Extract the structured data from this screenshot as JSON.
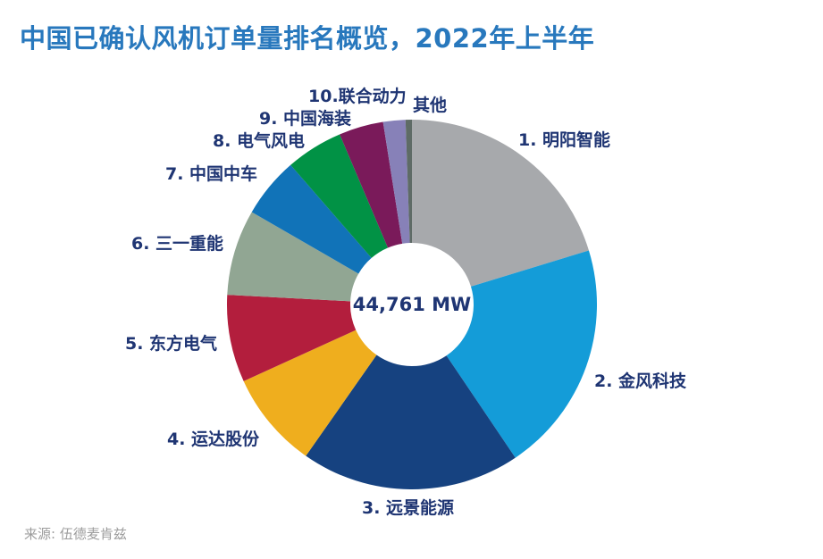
{
  "title": "中国已确认风机订单量排名概览，2022年上半年",
  "source_note": "来源: 伍德麦肯兹",
  "center_label": "44,761 MW",
  "colors": {
    "title_text": "#2878BD",
    "label_text": "#1F3573",
    "source_text": "#9C9C9C",
    "background": "#FFFFFF"
  },
  "chart_data": {
    "type": "pie",
    "style": "donut",
    "title": "中国已确认风机订单量排名概览，2022年上半年",
    "center_label": "44,761 MW",
    "total_mw": 44761,
    "units": "MW",
    "legend_position": "labels-around-slices",
    "slices": [
      {
        "rank": 1,
        "label": "1. 明阳智能",
        "name": "明阳智能",
        "color": "#A7A9AC",
        "start_deg": 0,
        "end_deg": 73,
        "share_pct_est": 20.3
      },
      {
        "rank": 2,
        "label": "2. 金风科技",
        "name": "金风科技",
        "color": "#149CD8",
        "start_deg": 73,
        "end_deg": 146,
        "share_pct_est": 20.3
      },
      {
        "rank": 3,
        "label": "3. 远景能源",
        "name": "远景能源",
        "color": "#164280",
        "start_deg": 146,
        "end_deg": 215,
        "share_pct_est": 19.2
      },
      {
        "rank": 4,
        "label": "4. 运达股份",
        "name": "运达股份",
        "color": "#EFAE1E",
        "start_deg": 215,
        "end_deg": 245.5,
        "share_pct_est": 8.5
      },
      {
        "rank": 5,
        "label": "5. 东方电气",
        "name": "东方电气",
        "color": "#B31E3D",
        "start_deg": 245.5,
        "end_deg": 273,
        "share_pct_est": 7.6
      },
      {
        "rank": 6,
        "label": "6. 三一重能",
        "name": "三一重能",
        "color": "#91A693",
        "start_deg": 273,
        "end_deg": 300,
        "share_pct_est": 7.5
      },
      {
        "rank": 7,
        "label": "7. 中国中车",
        "name": "中国中车",
        "color": "#1173B8",
        "start_deg": 300,
        "end_deg": 319,
        "share_pct_est": 5.3
      },
      {
        "rank": 8,
        "label": "8. 电气风电",
        "name": "电气风电",
        "color": "#019245",
        "start_deg": 319,
        "end_deg": 337,
        "share_pct_est": 5.0
      },
      {
        "rank": 9,
        "label": "9. 中国海装",
        "name": "中国海装",
        "color": "#7A1A5A",
        "start_deg": 337,
        "end_deg": 351,
        "share_pct_est": 3.9
      },
      {
        "rank": 10,
        "label": "10.联合动力",
        "name": "联合动力",
        "color": "#8781B8",
        "start_deg": 351,
        "end_deg": 358,
        "share_pct_est": 1.9
      },
      {
        "rank": null,
        "label": "其他",
        "name": "其他",
        "color": "#5E6B66",
        "start_deg": 358,
        "end_deg": 360,
        "share_pct_est": 0.6
      }
    ]
  }
}
